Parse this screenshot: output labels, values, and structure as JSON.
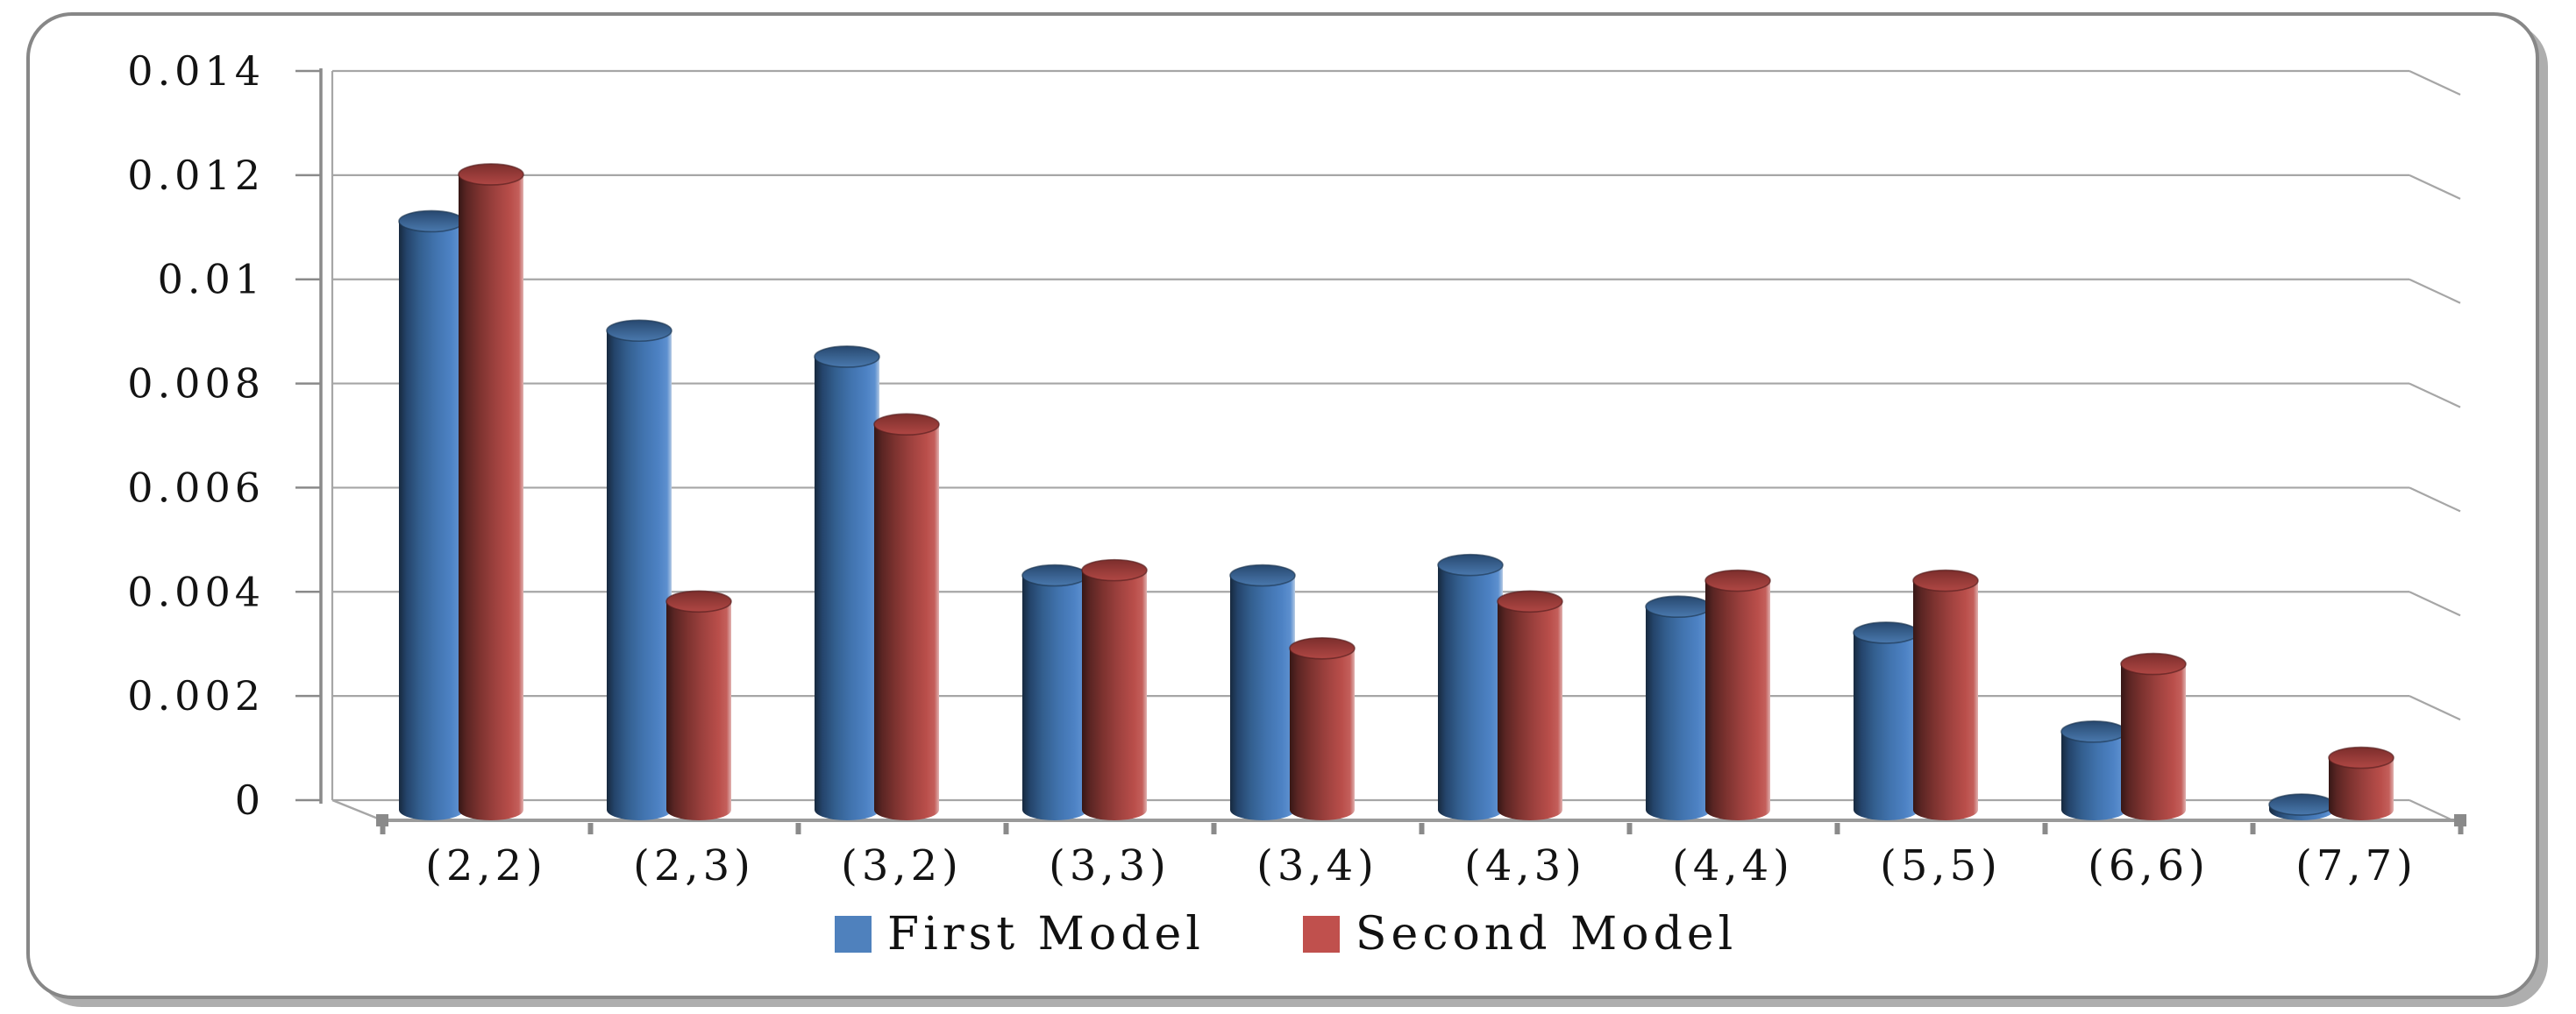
{
  "page": {
    "background": "#ffffff",
    "frame_border_color": "#878787",
    "frame_shadow_color": "#aeaeae"
  },
  "chart_data": {
    "type": "bar",
    "style": "3d-cylinder",
    "title": "",
    "xlabel": "",
    "ylabel": "",
    "categories": [
      "(2,2)",
      "(2,3)",
      "(3,2)",
      "(3,3)",
      "(3,4)",
      "(4,3)",
      "(4,4)",
      "(5,5)",
      "(6,6)",
      "(7,7)"
    ],
    "series": [
      {
        "name": "First Model",
        "color": "#4F81BD",
        "values": [
          0.0113,
          0.0092,
          0.0087,
          0.0045,
          0.0045,
          0.0047,
          0.0039,
          0.0034,
          0.0015,
          0.0001
        ]
      },
      {
        "name": "Second Model",
        "color": "#C0504D",
        "values": [
          0.0122,
          0.004,
          0.0074,
          0.0046,
          0.0031,
          0.004,
          0.0044,
          0.0044,
          0.0028,
          0.001
        ]
      }
    ],
    "ylim": [
      0,
      0.014
    ],
    "y_ticks": [
      "0",
      "0.002",
      "0.004",
      "0.006",
      "0.008",
      "0.01",
      "0.012",
      "0.014"
    ],
    "grid": true,
    "legend_position": "bottom",
    "gridline_color": "#a6a6a6",
    "axis_color": "#8a8a8a",
    "text_color": "#131313"
  }
}
